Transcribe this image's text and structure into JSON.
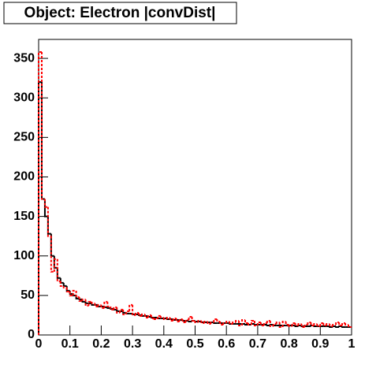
{
  "chart_data": {
    "type": "histogram",
    "title": "Object: Electron |convDist|",
    "bins": [
      0,
      0.01,
      0.02,
      0.03,
      0.04,
      0.05,
      0.06,
      0.07,
      0.08,
      0.09,
      0.1,
      0.11,
      0.12,
      0.13,
      0.14,
      0.15,
      0.16,
      0.17,
      0.18,
      0.19,
      0.2,
      0.21,
      0.22,
      0.23,
      0.24,
      0.25,
      0.26,
      0.27,
      0.28,
      0.29,
      0.3,
      0.31,
      0.32,
      0.33,
      0.34,
      0.35,
      0.36,
      0.37,
      0.38,
      0.39,
      0.4,
      0.41,
      0.42,
      0.43,
      0.44,
      0.45,
      0.46,
      0.47,
      0.48,
      0.49,
      0.5,
      0.51,
      0.52,
      0.53,
      0.54,
      0.55,
      0.56,
      0.57,
      0.58,
      0.59,
      0.6,
      0.61,
      0.62,
      0.63,
      0.64,
      0.65,
      0.66,
      0.67,
      0.68,
      0.69,
      0.7,
      0.71,
      0.72,
      0.73,
      0.74,
      0.75,
      0.76,
      0.77,
      0.78,
      0.79,
      0.8,
      0.81,
      0.82,
      0.83,
      0.84,
      0.85,
      0.86,
      0.87,
      0.88,
      0.89,
      0.9,
      0.91,
      0.92,
      0.93,
      0.94,
      0.95,
      0.96,
      0.97,
      0.98,
      0.99,
      1
    ],
    "series": [
      {
        "color": "#000000",
        "dashed": false,
        "values": [
          320,
          172,
          150,
          128,
          100,
          85,
          72,
          66,
          62,
          56,
          52,
          50,
          46,
          45,
          42,
          40,
          40,
          38,
          38,
          36,
          36,
          35,
          34,
          33,
          32,
          30,
          30,
          28,
          27,
          27,
          26,
          26,
          25,
          24,
          24,
          23,
          22,
          22,
          21,
          21,
          21,
          20,
          20,
          19,
          19,
          19,
          18,
          18,
          17,
          18,
          17,
          17,
          16,
          16,
          16,
          16,
          15,
          15,
          15,
          15,
          15,
          14,
          14,
          14,
          14,
          14,
          13,
          13,
          14,
          13,
          13,
          13,
          13,
          12,
          13,
          12,
          12,
          12,
          12,
          12,
          12,
          12,
          11,
          12,
          11,
          11,
          11,
          12,
          11,
          11,
          11,
          11,
          11,
          10,
          11,
          10,
          11,
          10,
          10,
          10
        ]
      },
      {
        "color": "#ff0000",
        "dashed": true,
        "values": [
          358,
          172,
          162,
          125,
          80,
          96,
          68,
          62,
          60,
          55,
          50,
          56,
          48,
          43,
          45,
          37,
          42,
          40,
          36,
          38,
          34,
          42,
          36,
          32,
          35,
          28,
          32,
          26,
          30,
          38,
          25,
          28,
          24,
          26,
          22,
          25,
          21,
          20,
          24,
          22,
          20,
          22,
          18,
          21,
          17,
          20,
          16,
          19,
          23,
          18,
          16,
          18,
          15,
          17,
          14,
          16,
          20,
          17,
          13,
          15,
          17,
          14,
          16,
          18,
          12,
          19,
          15,
          13,
          18,
          12,
          16,
          12,
          15,
          18,
          11,
          14,
          16,
          10,
          17,
          13,
          11,
          15,
          12,
          14,
          10,
          13,
          16,
          12,
          14,
          11,
          15,
          12,
          14,
          11,
          13,
          16,
          12,
          15,
          13,
          10
        ]
      }
    ],
    "xlim": [
      0,
      1
    ],
    "xticks": [
      0,
      0.1,
      0.2,
      0.3,
      0.4,
      0.5,
      0.6,
      0.7,
      0.8,
      0.9,
      1
    ],
    "ylim": [
      0,
      374
    ],
    "yticks": [
      0,
      50,
      100,
      150,
      200,
      250,
      300,
      350
    ]
  }
}
